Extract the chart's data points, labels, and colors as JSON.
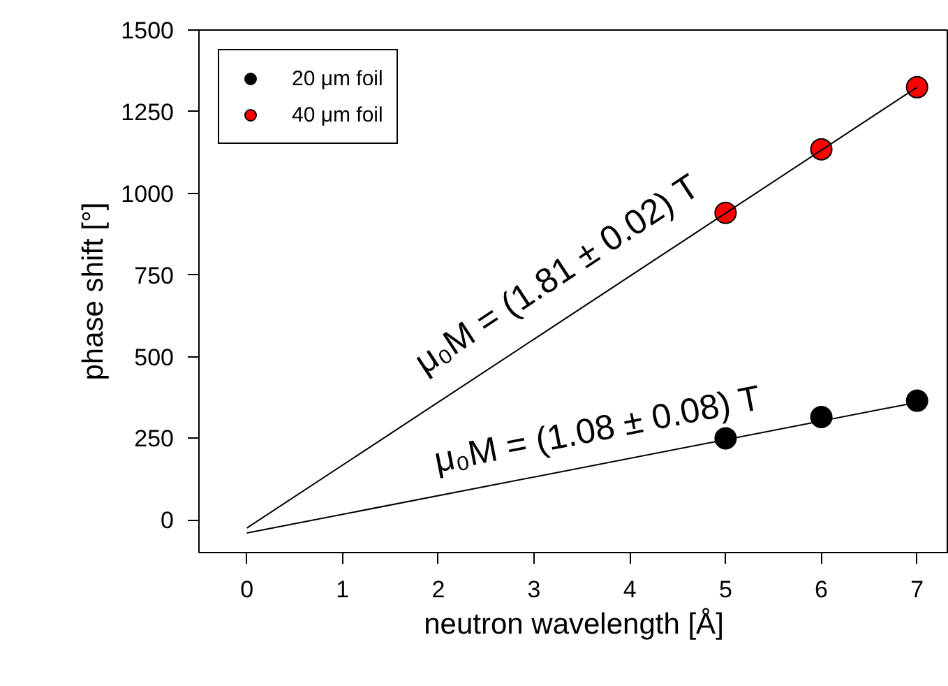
{
  "chart_data": {
    "type": "scatter",
    "xlabel": "neutron wavelength [Å]",
    "ylabel": "phase shift [°]",
    "xlim": [
      -0.5,
      7.33
    ],
    "ylim": [
      -100,
      1500
    ],
    "xticks": [
      0,
      1,
      2,
      3,
      4,
      5,
      6,
      7
    ],
    "yticks": [
      0,
      250,
      500,
      750,
      1000,
      1250,
      1500
    ],
    "grid": false,
    "legend": "top left",
    "series": [
      {
        "name": "20 μm foil",
        "color": "#000000",
        "marker": "circle",
        "x": [
          5,
          6,
          7
        ],
        "values": [
          250,
          315,
          365
        ]
      },
      {
        "name": "40 μm foil",
        "color": "#ff0000",
        "marker": "circle",
        "x": [
          5,
          6,
          7
        ],
        "values": [
          940,
          1135,
          1325
        ]
      },
      {
        "type": "line",
        "color": "#000000",
        "x": [
          0,
          7
        ],
        "values": [
          -40,
          360
        ]
      },
      {
        "type": "line",
        "color": "#000000",
        "x": [
          0,
          7
        ],
        "values": [
          -25,
          1325
        ]
      }
    ],
    "annotations": [
      "μ₀M = (1.08 ± 0.08) T",
      "μ₀M = (1.81 ± 0.02) T"
    ]
  }
}
